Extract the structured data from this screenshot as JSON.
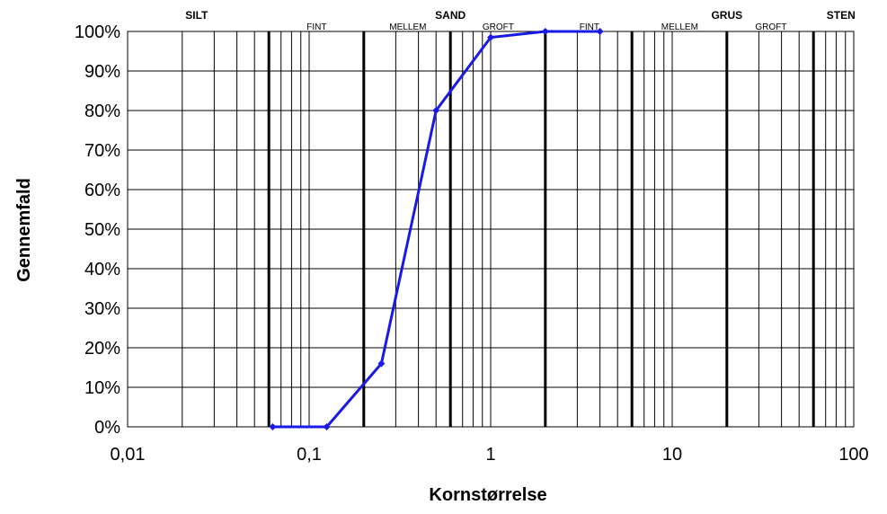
{
  "chart_data": {
    "type": "line",
    "xscale": "log",
    "xlabel": "Kornstørrelse",
    "ylabel": "Gennemfald",
    "xlim": [
      0.01,
      100
    ],
    "ylim": [
      0,
      100
    ],
    "x_ticks": [
      "0,01",
      "0,1",
      "1",
      "10",
      "100"
    ],
    "y_ticks": [
      "0%",
      "10%",
      "20%",
      "30%",
      "40%",
      "50%",
      "60%",
      "70%",
      "80%",
      "90%",
      "100%"
    ],
    "grid": true,
    "line_color": "#1a1ae6",
    "category_labels": [
      {
        "text": "SILT",
        "x": 0.024,
        "level": "main"
      },
      {
        "text": "SAND",
        "x": 0.6,
        "level": "main"
      },
      {
        "text": "GRUS",
        "x": 20,
        "level": "main"
      },
      {
        "text": "STEN",
        "x": 85,
        "level": "main"
      },
      {
        "text": "FINT",
        "x": 0.11,
        "level": "sub"
      },
      {
        "text": "MELLEM",
        "x": 0.35,
        "level": "sub"
      },
      {
        "text": "GROFT",
        "x": 1.1,
        "level": "sub"
      },
      {
        "text": "FINT",
        "x": 3.5,
        "level": "sub"
      },
      {
        "text": "MELLEM",
        "x": 11,
        "level": "sub"
      },
      {
        "text": "GROFT",
        "x": 35,
        "level": "sub"
      }
    ],
    "thick_gridlines_x": [
      0.06,
      0.2,
      0.6,
      2,
      6,
      20,
      60
    ],
    "series": [
      {
        "x": [
          0.063,
          0.125,
          0.25,
          0.5,
          1,
          2,
          4
        ],
        "y": [
          0,
          0,
          16,
          80,
          98.5,
          100,
          100
        ]
      }
    ]
  }
}
